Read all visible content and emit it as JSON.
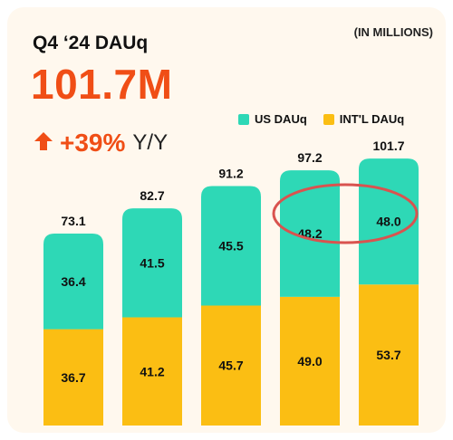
{
  "header": {
    "title": "Q4 ‘24 DAUq",
    "total": "101.7M",
    "growth": "+39%",
    "growth_unit": "Y/Y",
    "units_note": "(IN MILLIONS)"
  },
  "colors": {
    "accent": "#f04e16",
    "us": "#2ed8b6",
    "intl": "#fbbe13",
    "highlight_circle": "#d9534f"
  },
  "icons": {
    "growth": "arrow-up-icon"
  },
  "chart_data": {
    "type": "bar",
    "stacked": true,
    "categories": [
      "",
      "",
      "",
      "",
      ""
    ],
    "series": [
      {
        "name": "INT'L DAUq",
        "values": [
          36.7,
          41.2,
          45.7,
          49.0,
          53.7
        ]
      },
      {
        "name": "US DAUq",
        "values": [
          36.4,
          41.5,
          45.5,
          48.2,
          48.0
        ]
      }
    ],
    "totals": [
      73.1,
      82.7,
      91.2,
      97.2,
      101.7
    ],
    "legend": [
      "US DAUq",
      "INT'L DAUq"
    ],
    "legend_position": "top-right",
    "title": "Q4 ‘24 DAUq",
    "xlabel": "",
    "ylabel": "",
    "ylim": [
      0,
      110
    ],
    "grid": false,
    "annotations": [
      {
        "type": "circle",
        "around": "US DAUq values of last two bars"
      }
    ]
  }
}
